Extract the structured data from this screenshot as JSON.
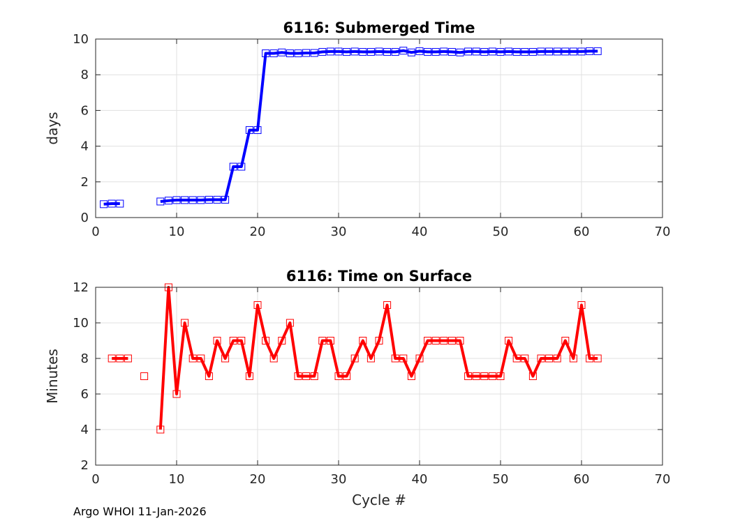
{
  "footer": "Argo WHOI 11-Jan-2026",
  "chart_data": [
    {
      "type": "line",
      "title": "6116: Submerged Time",
      "xlabel": "",
      "ylabel": "days",
      "xlim": [
        0,
        70
      ],
      "ylim": [
        0,
        10
      ],
      "xticks": [
        0,
        10,
        20,
        30,
        40,
        50,
        60,
        70
      ],
      "yticks": [
        0,
        2,
        4,
        6,
        8,
        10
      ],
      "grid": true,
      "color": "#0000ff",
      "marker": "square",
      "x": [
        1,
        2,
        3,
        null,
        8,
        9,
        10,
        11,
        12,
        13,
        14,
        15,
        16,
        17,
        18,
        19,
        20,
        21,
        22,
        23,
        24,
        25,
        26,
        27,
        28,
        29,
        30,
        31,
        32,
        33,
        34,
        35,
        36,
        37,
        38,
        39,
        40,
        41,
        42,
        43,
        44,
        45,
        46,
        47,
        48,
        49,
        50,
        51,
        52,
        53,
        54,
        55,
        56,
        57,
        58,
        59,
        60,
        61,
        62
      ],
      "y": [
        0.75,
        0.78,
        0.78,
        null,
        0.9,
        0.95,
        0.98,
        0.98,
        0.98,
        0.98,
        1.0,
        1.0,
        1.0,
        2.85,
        2.85,
        4.9,
        4.9,
        9.2,
        9.2,
        9.25,
        9.2,
        9.2,
        9.22,
        9.22,
        9.28,
        9.3,
        9.3,
        9.28,
        9.3,
        9.28,
        9.28,
        9.3,
        9.28,
        9.28,
        9.35,
        9.25,
        9.32,
        9.28,
        9.28,
        9.3,
        9.28,
        9.25,
        9.3,
        9.3,
        9.28,
        9.3,
        9.28,
        9.3,
        9.28,
        9.28,
        9.28,
        9.3,
        9.3,
        9.3,
        9.3,
        9.3,
        9.3,
        9.32,
        9.32
      ]
    },
    {
      "type": "line",
      "title": "6116: Time on Surface",
      "xlabel": "Cycle #",
      "ylabel": "Minutes",
      "xlim": [
        0,
        70
      ],
      "ylim": [
        2,
        12
      ],
      "xticks": [
        0,
        10,
        20,
        30,
        40,
        50,
        60,
        70
      ],
      "yticks": [
        2,
        4,
        6,
        8,
        10,
        12
      ],
      "grid": true,
      "color": "#ff0000",
      "marker": "square",
      "x": [
        2,
        3,
        4,
        null,
        6,
        null,
        8,
        9,
        10,
        11,
        12,
        13,
        14,
        15,
        16,
        17,
        18,
        19,
        20,
        21,
        22,
        23,
        24,
        25,
        26,
        27,
        28,
        29,
        30,
        31,
        32,
        33,
        34,
        35,
        36,
        37,
        38,
        39,
        40,
        41,
        42,
        43,
        44,
        45,
        46,
        47,
        48,
        49,
        50,
        51,
        52,
        53,
        54,
        55,
        56,
        57,
        58,
        59,
        60,
        61,
        62
      ],
      "y": [
        8,
        8,
        8,
        null,
        7,
        null,
        4,
        12,
        6,
        10,
        8,
        8,
        7,
        9,
        8,
        9,
        9,
        7,
        11,
        9,
        8,
        9,
        10,
        7,
        7,
        7,
        9,
        9,
        7,
        7,
        8,
        9,
        8,
        9,
        11,
        8,
        8,
        7,
        8,
        9,
        9,
        9,
        9,
        9,
        7,
        7,
        7,
        7,
        7,
        9,
        8,
        8,
        7,
        8,
        8,
        8,
        9,
        8,
        11,
        8,
        8
      ]
    }
  ]
}
